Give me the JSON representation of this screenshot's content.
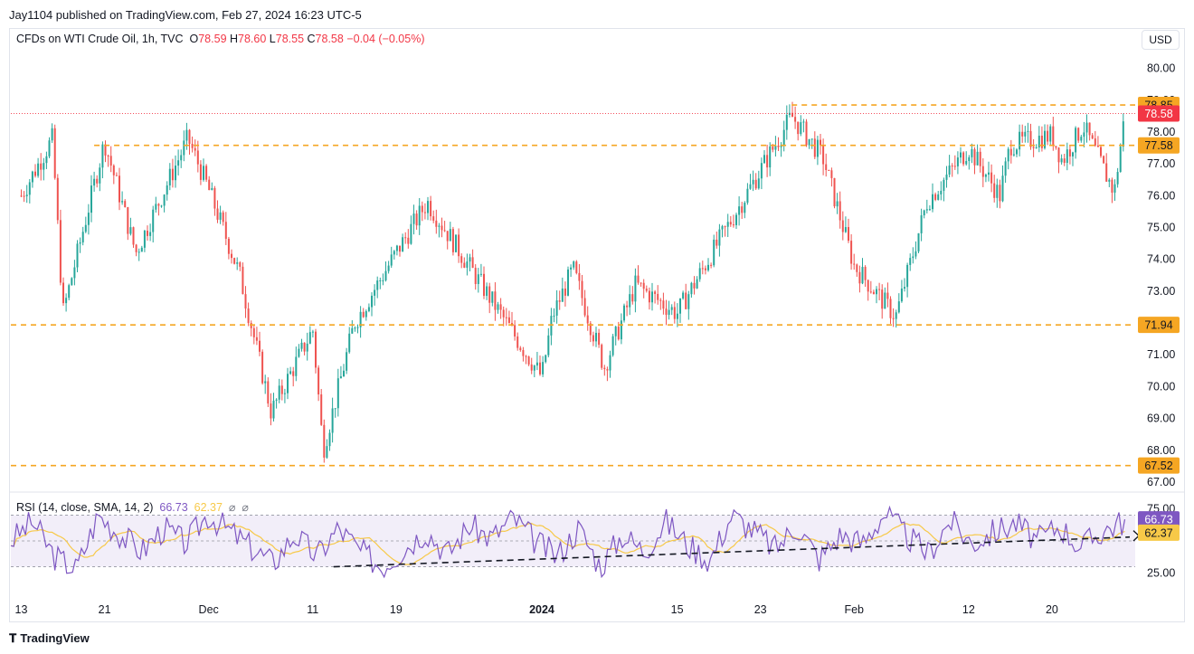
{
  "header": {
    "publisher": "Jay1104 published on TradingView.com, Feb 27, 2024 16:23 UTC-5",
    "currency_button": "USD"
  },
  "legend": {
    "symbol": "CFDs on WTI Crude Oil, 1h, TVC",
    "open_label": "O",
    "open": "78.59",
    "high_label": "H",
    "high": "78.60",
    "low_label": "L",
    "low": "78.55",
    "close_label": "C",
    "close": "78.58",
    "change": "−0.04 (−0.05%)"
  },
  "rsi_legend": {
    "label": "RSI (14, close, SMA, 14, 2)",
    "rsi_value": "66.73",
    "sma_value": "62.37",
    "extra1": "⌀",
    "extra2": "⌀"
  },
  "footer": {
    "brand": "TradingView",
    "logo_icon": "tradingview-logo-icon"
  },
  "colors": {
    "up": "#26a69a",
    "down": "#ef5350",
    "level": "#f5a623",
    "price": "#f23645",
    "rsi": "#7e57c2",
    "rsi_sma": "#f7c948"
  },
  "chart_data": [
    {
      "type": "line",
      "title": "CFDs on WTI Crude Oil, 1h, TVC",
      "series": [
        {
          "x": [
            "Nov 13",
            "Nov 16",
            "Nov 17",
            "Nov 21",
            "Nov 24",
            "Nov 29",
            "Dec 1",
            "Dec 4",
            "Dec 7",
            "Dec 11",
            "Dec 12",
            "Dec 15",
            "Dec 19",
            "Dec 22",
            "Dec 26",
            "Jan 2",
            "Jan 3",
            "Jan 5",
            "Jan 8",
            "Jan 11",
            "Jan 15",
            "Jan 18",
            "Jan 23",
            "Jan 26",
            "Jan 29",
            "Feb 1",
            "Feb 5",
            "Feb 8",
            "Feb 12",
            "Feb 15",
            "Feb 16",
            "Feb 20",
            "Feb 21",
            "Feb 23",
            "Feb 26",
            "Feb 27"
          ],
          "values": [
            76.0,
            77.8,
            72.3,
            77.7,
            74.2,
            77.8,
            76.2,
            73.5,
            69.2,
            71.8,
            68.0,
            72.0,
            74.2,
            75.8,
            73.8,
            70.3,
            72.2,
            73.7,
            70.6,
            73.2,
            72.3,
            74.0,
            76.8,
            78.5,
            77.2,
            73.8,
            72.2,
            75.8,
            77.5,
            76.0,
            77.6,
            77.9,
            77.1,
            78.2,
            76.1,
            78.58
          ]
        }
      ],
      "ylim": [
        66.8,
        80.5
      ],
      "y_ticks": [
        "80.00",
        "79.00",
        "78.00",
        "77.00",
        "76.00",
        "75.00",
        "74.00",
        "73.00",
        "72.00",
        "71.00",
        "70.00",
        "69.00",
        "68.00",
        "67.00"
      ],
      "y_tick_values": [
        80,
        79,
        78,
        77,
        76,
        75,
        74,
        73,
        72,
        71,
        70,
        69,
        68,
        67
      ],
      "x_ticks": [
        {
          "label": "13",
          "value": "Nov 13"
        },
        {
          "label": "21",
          "value": "Nov 21"
        },
        {
          "label": "Dec",
          "value": "Dec 1"
        },
        {
          "label": "11",
          "value": "Dec 11"
        },
        {
          "label": "19",
          "value": "Dec 19"
        },
        {
          "label": "2024",
          "value": "Jan 2"
        },
        {
          "label": "15",
          "value": "Jan 15"
        },
        {
          "label": "23",
          "value": "Jan 23"
        },
        {
          "label": "Feb",
          "value": "Feb 1"
        },
        {
          "label": "12",
          "value": "Feb 12"
        },
        {
          "label": "20",
          "value": "Feb 20"
        }
      ],
      "horizontal_levels": [
        {
          "value": 78.85,
          "label": "78.85"
        },
        {
          "value": 77.58,
          "label": "77.58"
        },
        {
          "value": 71.94,
          "label": "71.94"
        },
        {
          "value": 67.52,
          "label": "67.52"
        }
      ],
      "current_price": {
        "value": 78.58,
        "label": "78.58"
      }
    },
    {
      "type": "line",
      "title": "RSI (14, close, SMA, 14, 2)",
      "ylim": [
        15,
        85
      ],
      "y_ticks": [
        "75.00",
        "25.00"
      ],
      "y_tick_values": [
        75,
        25
      ],
      "band": [
        30,
        70
      ],
      "latest": {
        "rsi": "66.73",
        "sma": "62.37"
      },
      "rsi_values": [
        50,
        65,
        38,
        28,
        70,
        55,
        42,
        60,
        48,
        70,
        58,
        45,
        33,
        55,
        38,
        60,
        42,
        30,
        44,
        58,
        40,
        62,
        52,
        68,
        50,
        38,
        60,
        30,
        55,
        42,
        65,
        47,
        35,
        70,
        58,
        44,
        62,
        36,
        55,
        48,
        72,
        54,
        40,
        66,
        48,
        57,
        64,
        50,
        62,
        45,
        58,
        66
      ],
      "trendlines": [
        {
          "from": {
            "x": "Dec 13",
            "y": 30
          },
          "to": {
            "x": "Feb 27",
            "y": 52
          }
        }
      ]
    }
  ]
}
